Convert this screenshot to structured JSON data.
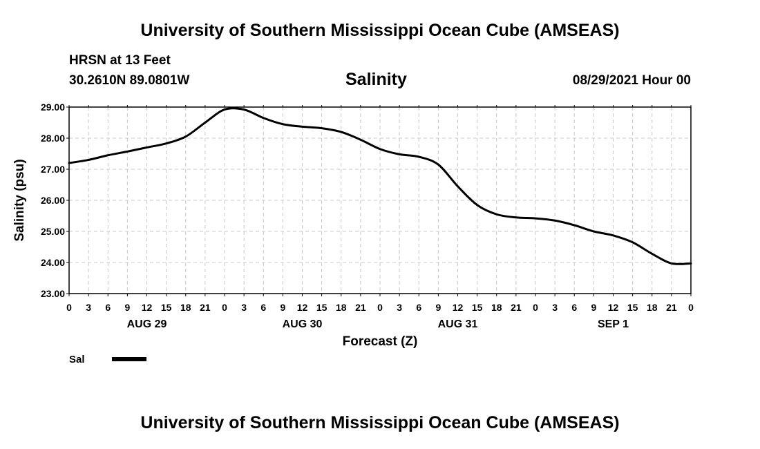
{
  "header": {
    "title_top": "University of Southern Mississippi Ocean Cube (AMSEAS)",
    "station": "HRSN at 13 Feet",
    "coords": "30.2610N  89.0801W",
    "datetime": "08/29/2021 Hour 00",
    "title_bottom": "University of Southern Mississippi Ocean Cube (AMSEAS)"
  },
  "chart_data": {
    "type": "line",
    "title": "Salinity",
    "xlabel": "Forecast (Z)",
    "ylabel": "Salinity (psu)",
    "ylim": [
      23.0,
      29.0
    ],
    "yticks": [
      "23.00",
      "24.00",
      "25.00",
      "26.00",
      "27.00",
      "28.00",
      "29.00"
    ],
    "xlim": [
      0,
      96
    ],
    "xtick_labels": [
      "0",
      "3",
      "6",
      "9",
      "12",
      "15",
      "18",
      "21",
      "0",
      "3",
      "6",
      "9",
      "12",
      "15",
      "18",
      "21",
      "0",
      "3",
      "6",
      "9",
      "12",
      "15",
      "18",
      "21",
      "0",
      "3",
      "6",
      "9",
      "12",
      "15",
      "18",
      "21",
      "0"
    ],
    "day_labels": [
      {
        "label": "AUG 29",
        "hour": 12
      },
      {
        "label": "AUG 30",
        "hour": 36
      },
      {
        "label": "AUG 31",
        "hour": 60
      },
      {
        "label": "SEP 1",
        "hour": 84
      }
    ],
    "grid": true,
    "legend": "bottom-left",
    "series": [
      {
        "name": "Sal",
        "color": "#000000",
        "x": [
          0,
          3,
          6,
          9,
          12,
          15,
          18,
          21,
          24,
          27,
          30,
          33,
          36,
          39,
          42,
          45,
          48,
          51,
          54,
          57,
          60,
          63,
          66,
          69,
          72,
          75,
          78,
          81,
          84,
          87,
          90,
          93,
          96
        ],
        "values": [
          27.2,
          27.3,
          27.45,
          27.57,
          27.7,
          27.83,
          28.05,
          28.5,
          28.92,
          28.92,
          28.65,
          28.45,
          28.37,
          28.32,
          28.2,
          27.95,
          27.65,
          27.48,
          27.4,
          27.15,
          26.45,
          25.85,
          25.55,
          25.45,
          25.42,
          25.35,
          25.2,
          25.0,
          24.87,
          24.65,
          24.28,
          23.97,
          23.97
        ]
      }
    ]
  }
}
